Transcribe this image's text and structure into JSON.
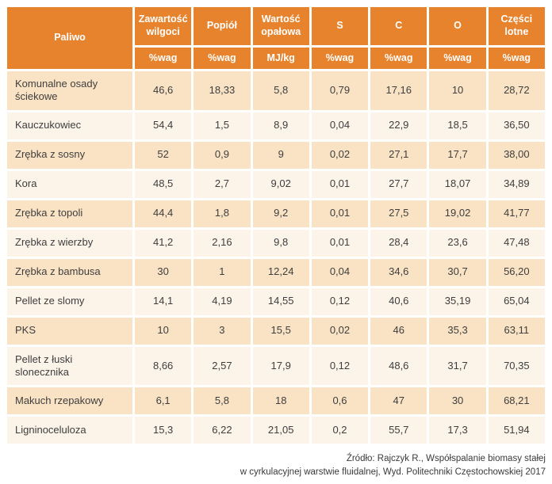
{
  "colors": {
    "orange": "#E8832D",
    "rowPeach": "#FAE3C4",
    "rowCream": "#FCF3E9",
    "cellText": "#3E3E3E",
    "headerText": "#FFFFFF",
    "footerText": "#3A3A3A",
    "pageBg": "#FFFFFF"
  },
  "chart_data": {
    "type": "table",
    "fuel_column_header": "Paliwo",
    "columns": [
      {
        "label": "Zawartość wilgoci",
        "unit": "%wag"
      },
      {
        "label": "Popiół",
        "unit": "%wag"
      },
      {
        "label": "Wartość opałowa",
        "unit": "MJ/kg"
      },
      {
        "label": "S",
        "unit": "%wag"
      },
      {
        "label": "C",
        "unit": "%wag"
      },
      {
        "label": "O",
        "unit": "%wag"
      },
      {
        "label": "Części lotne",
        "unit": "%wag"
      }
    ],
    "rows": [
      {
        "fuel": "Komunalne osady ściekowe",
        "values": [
          "46,6",
          "18,33",
          "5,8",
          "0,79",
          "17,16",
          "10",
          "28,72"
        ]
      },
      {
        "fuel": "Kauczukowiec",
        "values": [
          "54,4",
          "1,5",
          "8,9",
          "0,04",
          "22,9",
          "18,5",
          "36,50"
        ]
      },
      {
        "fuel": "Zrębka z sosny",
        "values": [
          "52",
          "0,9",
          "9",
          "0,02",
          "27,1",
          "17,7",
          "38,00"
        ]
      },
      {
        "fuel": "Kora",
        "values": [
          "48,5",
          "2,7",
          "9,02",
          "0,01",
          "27,7",
          "18,07",
          "34,89"
        ]
      },
      {
        "fuel": "Zrębka z topoli",
        "values": [
          "44,4",
          "1,8",
          "9,2",
          "0,01",
          "27,5",
          "19,02",
          "41,77"
        ]
      },
      {
        "fuel": "Zrębka z wierzby",
        "values": [
          "41,2",
          "2,16",
          "9,8",
          "0,01",
          "28,4",
          "23,6",
          "47,48"
        ]
      },
      {
        "fuel": "Zrębka z bambusa",
        "values": [
          "30",
          "1",
          "12,24",
          "0,04",
          "34,6",
          "30,7",
          "56,20"
        ]
      },
      {
        "fuel": "Pellet ze slomy",
        "values": [
          "14,1",
          "4,19",
          "14,55",
          "0,12",
          "40,6",
          "35,19",
          "65,04"
        ]
      },
      {
        "fuel": "PKS",
        "values": [
          "10",
          "3",
          "15,5",
          "0,02",
          "46",
          "35,3",
          "63,11"
        ]
      },
      {
        "fuel": "Pellet z łuski slonecznika",
        "values": [
          "8,66",
          "2,57",
          "17,9",
          "0,12",
          "48,6",
          "31,7",
          "70,35"
        ]
      },
      {
        "fuel": "Makuch rzepakowy",
        "values": [
          "6,1",
          "5,8",
          "18",
          "0,6",
          "47",
          "30",
          "68,21"
        ]
      },
      {
        "fuel": "Ligninoceluloza",
        "values": [
          "15,3",
          "6,22",
          "21,05",
          "0,2",
          "55,7",
          "17,3",
          "51,94"
        ]
      }
    ]
  },
  "footer": {
    "line1": "Źródło: Rajczyk R., Współspalanie biomasy stałej",
    "line2": "w cyrkulacyjnej warstwie fluidalnej, Wyd. Politechniki Częstochowskiej 2017"
  }
}
